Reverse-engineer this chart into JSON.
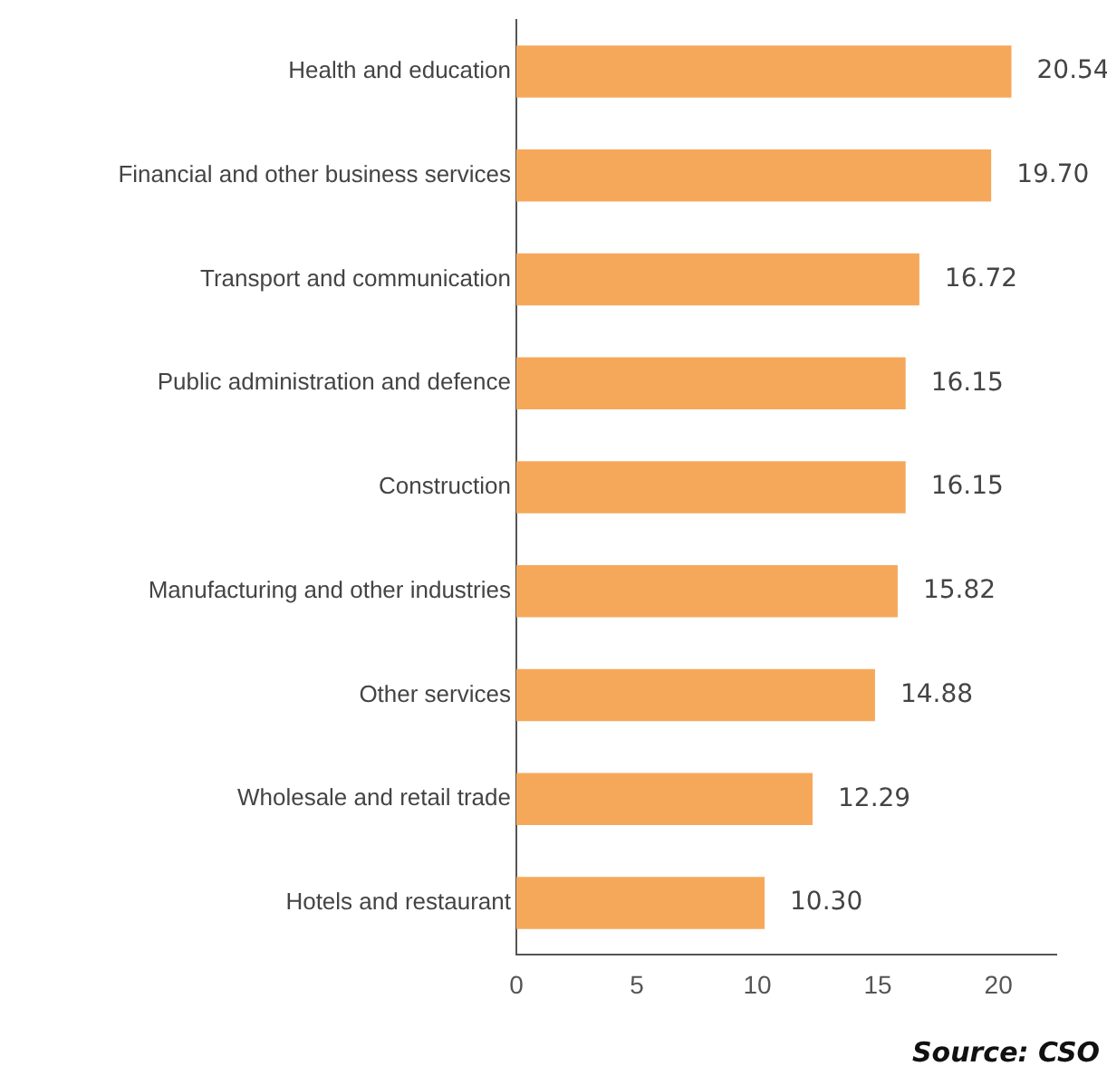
{
  "chart_data": {
    "type": "bar",
    "orientation": "horizontal",
    "categories": [
      "Health and education",
      "Financial and other business services",
      "Transport and communication",
      "Public administration and defence",
      "Construction",
      "Manufacturing and other industries",
      "Other services",
      "Wholesale and retail trade",
      "Hotels and restaurant"
    ],
    "values": [
      20.54,
      19.7,
      16.72,
      16.15,
      16.15,
      15.82,
      14.88,
      12.29,
      10.3
    ],
    "value_labels": [
      "20.54",
      "19.70",
      "16.72",
      "16.15",
      "16.15",
      "15.82",
      "14.88",
      "12.29",
      "10.30"
    ],
    "color": "#f6a85a",
    "xlim": [
      0,
      22.4
    ],
    "xticks": [
      0,
      5,
      10,
      15,
      20
    ],
    "grid": false,
    "annotations": [
      "Source: CSO"
    ]
  }
}
